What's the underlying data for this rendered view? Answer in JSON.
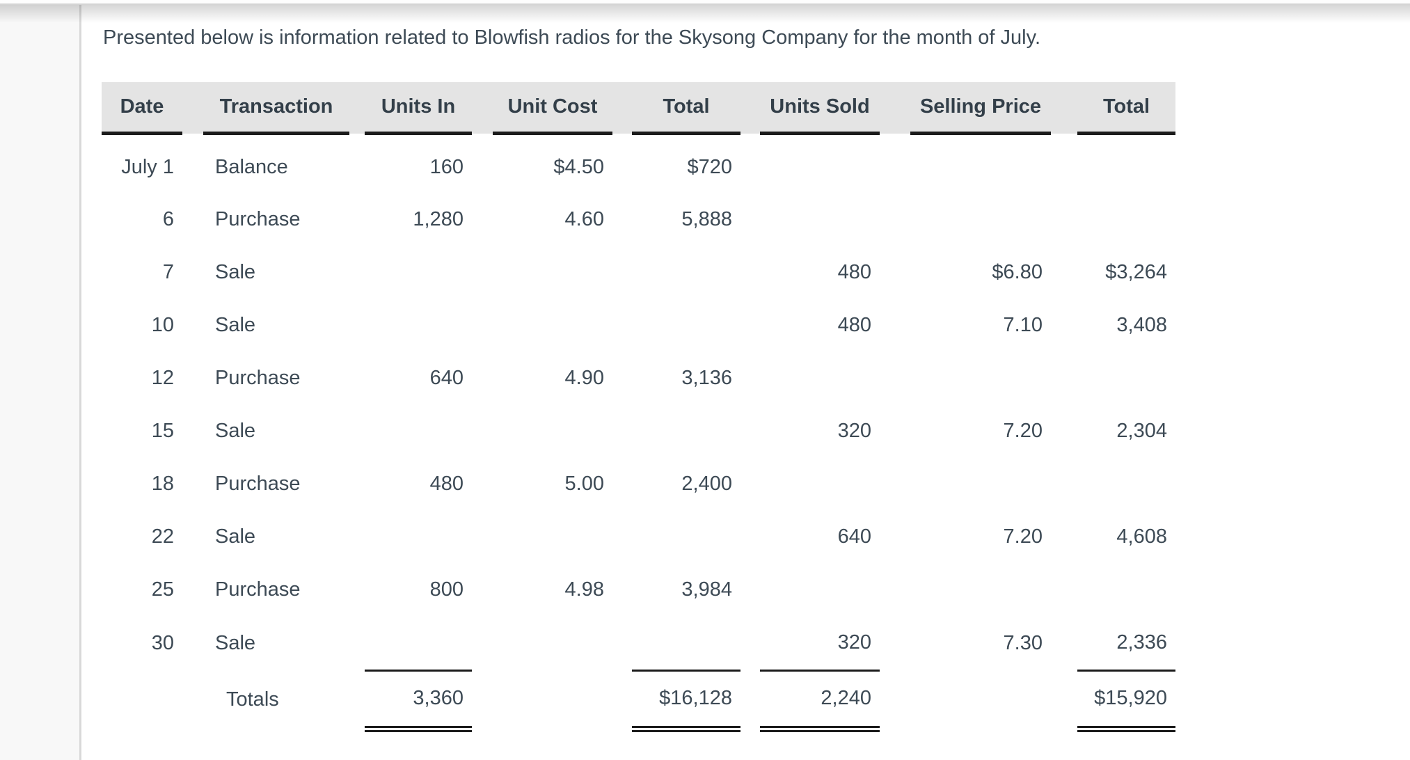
{
  "page": {
    "intro_text": "Presented below is information related to Blowfish radios for the Skysong Company for the month of July."
  },
  "table": {
    "columns": [
      "Date",
      "Transaction",
      "Units In",
      "Unit Cost",
      "Total",
      "Units Sold",
      "Selling Price",
      "Total"
    ],
    "rows": [
      {
        "date": "July 1",
        "transaction": "Balance",
        "units_in": "160",
        "unit_cost": "$4.50",
        "total_in": "$720",
        "units_sold": "",
        "selling_price": "",
        "total_sold": ""
      },
      {
        "date": "6",
        "transaction": "Purchase",
        "units_in": "1,280",
        "unit_cost": "4.60",
        "total_in": "5,888",
        "units_sold": "",
        "selling_price": "",
        "total_sold": ""
      },
      {
        "date": "7",
        "transaction": "Sale",
        "units_in": "",
        "unit_cost": "",
        "total_in": "",
        "units_sold": "480",
        "selling_price": "$6.80",
        "total_sold": "$3,264"
      },
      {
        "date": "10",
        "transaction": "Sale",
        "units_in": "",
        "unit_cost": "",
        "total_in": "",
        "units_sold": "480",
        "selling_price": "7.10",
        "total_sold": "3,408"
      },
      {
        "date": "12",
        "transaction": "Purchase",
        "units_in": "640",
        "unit_cost": "4.90",
        "total_in": "3,136",
        "units_sold": "",
        "selling_price": "",
        "total_sold": ""
      },
      {
        "date": "15",
        "transaction": "Sale",
        "units_in": "",
        "unit_cost": "",
        "total_in": "",
        "units_sold": "320",
        "selling_price": "7.20",
        "total_sold": "2,304"
      },
      {
        "date": "18",
        "transaction": "Purchase",
        "units_in": "480",
        "unit_cost": "5.00",
        "total_in": "2,400",
        "units_sold": "",
        "selling_price": "",
        "total_sold": ""
      },
      {
        "date": "22",
        "transaction": "Sale",
        "units_in": "",
        "unit_cost": "",
        "total_in": "",
        "units_sold": "640",
        "selling_price": "7.20",
        "total_sold": "4,608"
      },
      {
        "date": "25",
        "transaction": "Purchase",
        "units_in": "800",
        "unit_cost": "4.98",
        "total_in": "3,984",
        "units_sold": "",
        "selling_price": "",
        "total_sold": ""
      },
      {
        "date": "30",
        "transaction": "Sale",
        "units_in": "",
        "unit_cost": "",
        "total_in": "",
        "units_sold": "320",
        "selling_price": "7.30",
        "total_sold": "2,336"
      }
    ],
    "totals": {
      "label": "Totals",
      "units_in": "3,360",
      "total_in": "$16,128",
      "units_sold": "2,240",
      "total_sold": "$15,920"
    }
  },
  "colors": {
    "text": "#3d4a55",
    "header_text": "#333f49",
    "header_bg": "#e4e4e4",
    "rule": "#1b1b1b",
    "sidebar_bg": "#f8f8f8",
    "divider": "#d8d8d8"
  }
}
